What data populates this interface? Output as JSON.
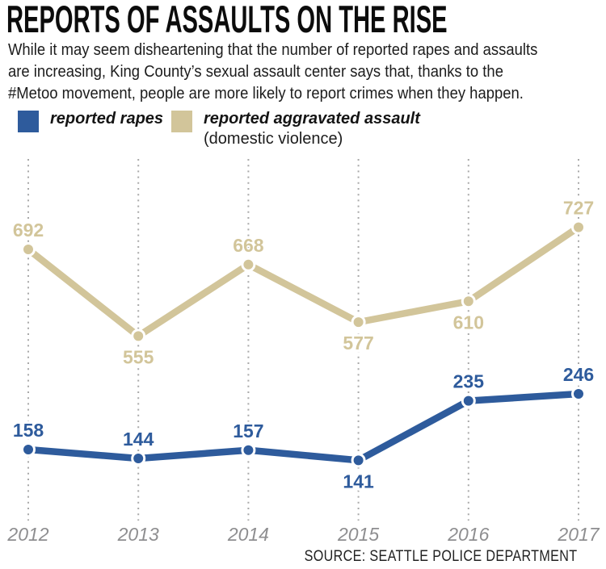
{
  "header": {
    "title": "REPORTS OF ASSAULTS ON THE RISE",
    "subtitle_lines": [
      "While it may seem disheartening that the number of reported rapes and assaults",
      "are increasing, King County’s sexual assault center says that, thanks to the",
      "#Metoo movement, people are more likely to report crimes when they happen."
    ]
  },
  "legend": {
    "items": [
      {
        "label": "reported rapes",
        "sublabel": "",
        "color": "#2e5b9c"
      },
      {
        "label": "reported aggravated assault",
        "sublabel": "(domestic violence)",
        "color": "#d2c59a"
      }
    ]
  },
  "source": "SOURCE: SEATTLE POLICE DEPARTMENT",
  "colors": {
    "blue": "#2e5b9c",
    "tan": "#d2c59a",
    "gridline": "#a9a9a9",
    "year_label": "#8e8e90"
  },
  "chart_data": {
    "type": "line",
    "title": "REPORTS OF ASSAULTS ON THE RISE",
    "xlabel": "",
    "ylabel": "",
    "x": [
      "2012",
      "2013",
      "2014",
      "2015",
      "2016",
      "2017"
    ],
    "grid": "vertical-dotted",
    "legend_position": "top-left",
    "y_axis_shown": false,
    "series": [
      {
        "name": "reported aggravated assault (domestic violence)",
        "color": "#d2c59a",
        "values": [
          692,
          555,
          668,
          577,
          610,
          727
        ],
        "label_positions": [
          "above",
          "below",
          "above",
          "below",
          "below",
          "above"
        ]
      },
      {
        "name": "reported rapes",
        "color": "#2e5b9c",
        "values": [
          158,
          144,
          157,
          141,
          235,
          246
        ],
        "label_positions": [
          "above",
          "above",
          "above",
          "below",
          "above",
          "above"
        ]
      }
    ]
  }
}
